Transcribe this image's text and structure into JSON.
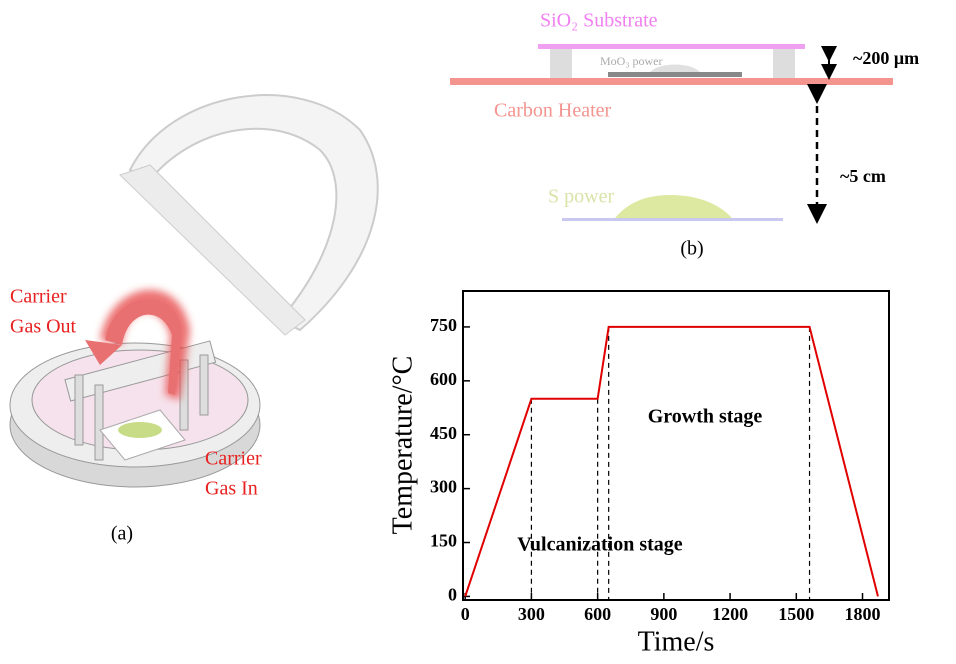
{
  "panel_a": {
    "gas_out": [
      "Carrier",
      "Gas Out"
    ],
    "gas_in": [
      "Carrier",
      "Gas In"
    ],
    "label": "(a)"
  },
  "panel_b": {
    "substrate": "SiO₂ Substrate",
    "moo3": "MoO₃ power",
    "heater": "Carbon Heater",
    "gap": "~200 μm",
    "distance": "~5 cm",
    "sulfur": "S power",
    "label": "(b)"
  },
  "chart_data": {
    "type": "line",
    "xlabel": "Time/s",
    "ylabel": "Temperature/°C",
    "x": [
      0,
      300,
      600,
      650,
      1560,
      1870
    ],
    "values": [
      0,
      550,
      550,
      750,
      750,
      0
    ],
    "color": "#e00000",
    "xlim": [
      -10,
      1920
    ],
    "ylim": [
      -10,
      850
    ],
    "xticks": [
      0,
      300,
      600,
      900,
      1200,
      1500,
      1800
    ],
    "yticks": [
      0,
      150,
      300,
      450,
      600,
      750
    ],
    "annotations": [
      "Growth stage",
      "Vulcanization stage"
    ]
  }
}
